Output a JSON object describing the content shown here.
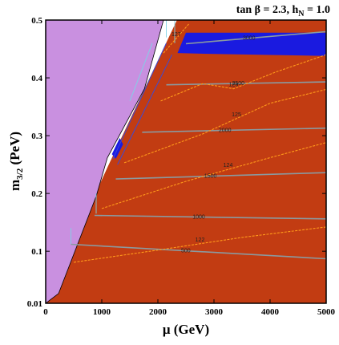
{
  "title_main": "tan β = 2.3, h",
  "title_sub": "N",
  "title_tail": " = 1.0",
  "chart_data": {
    "type": "contour",
    "xlabel": "μ  (GeV)",
    "ylabel_main": "m",
    "ylabel_sub": "3/2",
    "ylabel_tail": " (PeV)",
    "xlim": [
      0,
      5000
    ],
    "ylim": [
      0.01,
      0.5
    ],
    "x_ticks": [
      0,
      1000,
      2000,
      3000,
      4000,
      5000
    ],
    "y_ticks": [
      0.01,
      0.1,
      0.2,
      0.3,
      0.4,
      0.5
    ],
    "colors": {
      "excluded_region": "#c990e0",
      "allowed_region": "#c23c12",
      "blue_band": "#1a1ae0",
      "grey_contours": "#8a9aa0",
      "orange_contours": "#ff9a1a",
      "cyan_lines": "#7fd3e6",
      "blue_lines": "#3a4ad8"
    },
    "grey_contours": [
      {
        "label": "500",
        "points": [
          [
            450,
            0.112
          ],
          [
            5000,
            0.087
          ]
        ]
      },
      {
        "label": "1000",
        "points": [
          [
            870,
            0.162
          ],
          [
            5000,
            0.156
          ]
        ]
      },
      {
        "label": "1500",
        "points": [
          [
            1250,
            0.225
          ],
          [
            5000,
            0.236
          ]
        ]
      },
      {
        "label": "2000",
        "points": [
          [
            1720,
            0.306
          ],
          [
            5000,
            0.313
          ]
        ]
      },
      {
        "label": "2500",
        "points": [
          [
            2150,
            0.388
          ],
          [
            5000,
            0.393
          ]
        ]
      },
      {
        "label": "3000",
        "points": [
          [
            2500,
            0.459
          ],
          [
            5000,
            0.48
          ]
        ]
      }
    ],
    "orange_contours": [
      {
        "label": "122",
        "points": [
          [
            500,
            0.081
          ],
          [
            2000,
            0.102
          ],
          [
            3500,
            0.124
          ],
          [
            5000,
            0.142
          ]
        ]
      },
      {
        "label": "124",
        "points": [
          [
            1000,
            0.174
          ],
          [
            2500,
            0.221
          ],
          [
            4000,
            0.262
          ],
          [
            5000,
            0.288
          ]
        ]
      },
      {
        "label": "125",
        "points": [
          [
            1400,
            0.253
          ],
          [
            2800,
            0.303
          ],
          [
            4000,
            0.356
          ],
          [
            5000,
            0.38
          ]
        ]
      },
      {
        "label": "126",
        "points": [
          [
            2050,
            0.36
          ],
          [
            2800,
            0.39
          ],
          [
            3350,
            0.381
          ],
          [
            4100,
            0.41
          ],
          [
            5000,
            0.44
          ]
        ]
      },
      {
        "label": "127",
        "points": [
          [
            2100,
            0.443
          ],
          [
            2550,
            0.493
          ]
        ]
      }
    ],
    "allowed_region_boundary": [
      [
        0,
        0.01
      ],
      [
        1100,
        0.245
      ],
      [
        2340,
        0.5
      ],
      [
        5000,
        0.5
      ],
      [
        5000,
        0.01
      ]
    ],
    "excluded_region_boundary": [
      [
        0,
        0.01
      ],
      [
        230,
        0.027
      ],
      [
        900,
        0.195
      ],
      [
        1100,
        0.262
      ],
      [
        1760,
        0.381
      ],
      [
        2100,
        0.5
      ],
      [
        0,
        0.5
      ]
    ],
    "blue_band_upper": [
      [
        2350,
        0.443
      ],
      [
        2500,
        0.478
      ],
      [
        5000,
        0.478
      ]
    ],
    "blue_band_lower": [
      [
        5000,
        0.438
      ],
      [
        2700,
        0.442
      ]
    ],
    "blue_spot": [
      [
        1250,
        0.26
      ],
      [
        1380,
        0.285
      ],
      [
        1320,
        0.296
      ],
      [
        1180,
        0.268
      ]
    ]
  }
}
